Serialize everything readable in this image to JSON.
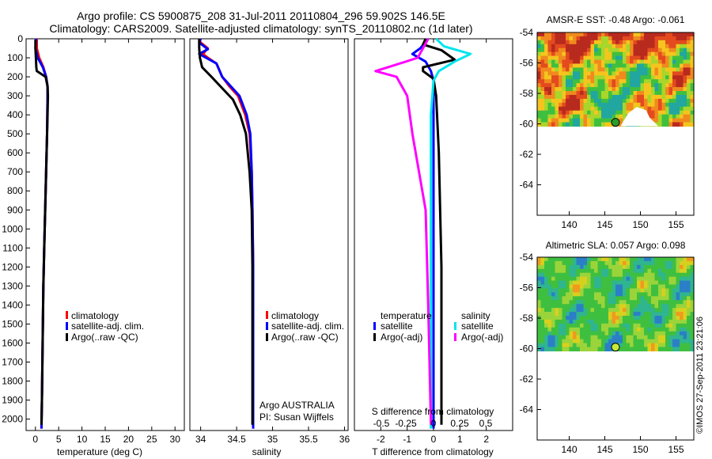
{
  "header": {
    "line1": "Argo profile: CS 5900875_208 31-Jul-2011 20110804_296 59.902S 146.5E",
    "line2": "Climatology: CARS2009. Satellite-adjusted climatology: synTS_20110802.nc (1d later)"
  },
  "colors": {
    "climatology": "#ff0000",
    "satellite": "#0000ff",
    "argo": "#000000",
    "sat_salinity": "#00e5ee",
    "argo_salinity": "#ff00ff"
  },
  "chart_data": [
    {
      "id": "temperature",
      "type": "line",
      "xlabel": "temperature (deg C)",
      "ylabel": "",
      "xlim": [
        -2,
        32
      ],
      "ylim": [
        2060,
        0
      ],
      "y_reversed": true,
      "xticks": [
        0,
        5,
        10,
        15,
        20,
        25,
        30
      ],
      "yticks": [
        0,
        100,
        200,
        300,
        400,
        500,
        600,
        700,
        800,
        900,
        1000,
        1100,
        1200,
        1300,
        1400,
        1500,
        1600,
        1700,
        1800,
        1900,
        2000
      ],
      "legend": [
        "climatology",
        "satellite-adj. clim.",
        "Argo(..raw -QC)"
      ],
      "series": [
        {
          "name": "climatology",
          "color": "#ff0000",
          "x": [
            0.3,
            0.3,
            0.8,
            1.7,
            2.3,
            2.6,
            2.6,
            2.5,
            2.3,
            2.1,
            1.9,
            1.7,
            1.6,
            1.5,
            1.4,
            1.3
          ],
          "y": [
            0,
            50,
            100,
            150,
            200,
            250,
            300,
            500,
            700,
            900,
            1100,
            1300,
            1500,
            1700,
            1900,
            2050
          ]
        },
        {
          "name": "satellite-adj. clim.",
          "color": "#0000ff",
          "x": [
            0.1,
            0.0,
            0.5,
            1.6,
            2.3,
            2.6,
            2.6,
            2.5,
            2.3,
            2.1,
            1.9,
            1.7,
            1.6,
            1.5,
            1.4,
            1.3
          ],
          "y": [
            0,
            50,
            100,
            150,
            200,
            250,
            300,
            500,
            700,
            900,
            1100,
            1300,
            1500,
            1700,
            1900,
            2050
          ]
        },
        {
          "name": "Argo(..raw -QC)",
          "color": "#000000",
          "x": [
            0.0,
            0.0,
            0.1,
            0.2,
            0.3,
            2.2,
            2.6,
            2.7,
            2.6,
            2.5,
            2.3,
            2.1,
            1.9,
            1.7,
            1.6,
            1.5,
            1.4,
            1.3
          ],
          "y": [
            5,
            50,
            100,
            150,
            170,
            200,
            250,
            300,
            400,
            500,
            700,
            900,
            1100,
            1300,
            1500,
            1700,
            1900,
            2030
          ]
        }
      ]
    },
    {
      "id": "salinity",
      "type": "line",
      "xlabel": "salinity",
      "ylabel": "",
      "xlim": [
        33.85,
        36.05
      ],
      "ylim": [
        2060,
        0
      ],
      "y_reversed": true,
      "xticks": [
        34,
        34.5,
        35,
        35.5,
        36
      ],
      "legend": [
        "climatology",
        "satellite-adj. clim.",
        "Argo(..raw -QC)"
      ],
      "annotation": [
        "Argo AUSTRALIA",
        "PI: Susan Wijffels"
      ],
      "series": [
        {
          "name": "climatology",
          "color": "#ff0000",
          "x": [
            33.98,
            34.0,
            34.1,
            34.03,
            34.1,
            34.22,
            34.3,
            34.4,
            34.52,
            34.62,
            34.68,
            34.71,
            34.72,
            34.73,
            34.73,
            34.73
          ],
          "y": [
            0,
            20,
            50,
            80,
            100,
            130,
            200,
            250,
            300,
            400,
            500,
            700,
            900,
            1200,
            1600,
            2050
          ]
        },
        {
          "name": "satellite-adj. clim.",
          "color": "#0000ff",
          "x": [
            34.0,
            33.98,
            34.1,
            33.98,
            34.1,
            34.22,
            34.3,
            34.42,
            34.54,
            34.64,
            34.69,
            34.71,
            34.72,
            34.73,
            34.73,
            34.73
          ],
          "y": [
            0,
            20,
            55,
            80,
            105,
            130,
            200,
            250,
            300,
            400,
            500,
            700,
            900,
            1200,
            1600,
            2050
          ]
        },
        {
          "name": "Argo(..raw -QC)",
          "color": "#000000",
          "x": [
            33.98,
            33.98,
            33.99,
            34.02,
            34.15,
            34.3,
            34.45,
            34.55,
            34.63,
            34.68,
            34.71,
            34.72,
            34.72,
            34.72
          ],
          "y": [
            0,
            50,
            100,
            150,
            200,
            260,
            320,
            400,
            500,
            700,
            900,
            1200,
            1600,
            2030
          ]
        }
      ]
    },
    {
      "id": "difference",
      "type": "line",
      "xlabel": "T difference from climatology",
      "top_label": "S difference from climatology",
      "xlim": [
        -3,
        3
      ],
      "ylim": [
        2060,
        0
      ],
      "y_reversed": true,
      "xticks": [
        -2,
        -1,
        0,
        1,
        2
      ],
      "top_ticks": [
        "-0.5",
        "-0.25",
        "0",
        "0.25",
        "0.5"
      ],
      "legend": {
        "temperature_header": "temperature",
        "salinity_header": "salinity",
        "items": [
          "satellite",
          "Argo(-adj)",
          "satellite",
          "Argo(-adj)"
        ]
      },
      "series": [
        {
          "name": "temperature satellite",
          "color": "#0000ff",
          "x": [
            -0.2,
            -0.5,
            -0.8,
            -0.3,
            -0.1,
            0.0,
            0.0,
            0.0,
            0.0
          ],
          "y": [
            0,
            50,
            80,
            120,
            170,
            220,
            400,
            1000,
            2050
          ]
        },
        {
          "name": "temperature Argo(-adj)",
          "color": "#000000",
          "x": [
            -0.3,
            -0.4,
            0.3,
            0.8,
            -0.4,
            -0.4,
            0.0,
            0.1,
            0.2,
            0.3,
            0.3
          ],
          "y": [
            0,
            30,
            60,
            110,
            150,
            170,
            210,
            300,
            600,
            1200,
            2030
          ]
        },
        {
          "name": "salinity satellite",
          "color": "#00e5ee",
          "x": [
            0.1,
            0.4,
            1.4,
            0.8,
            0.2,
            0.0,
            -0.1,
            -0.1,
            -0.1
          ],
          "y": [
            0,
            40,
            80,
            120,
            170,
            220,
            400,
            1000,
            2050
          ]
        },
        {
          "name": "salinity Argo(-adj)",
          "color": "#ff00ff",
          "x": [
            -0.2,
            -0.6,
            -1.5,
            -2.2,
            -1.4,
            -1.0,
            -0.8,
            -0.3,
            -0.2,
            -0.1
          ],
          "y": [
            0,
            100,
            140,
            170,
            200,
            300,
            500,
            900,
            1400,
            2030
          ]
        }
      ]
    },
    {
      "id": "sst_map",
      "type": "heatmap",
      "title": "AMSR-E SST: -0.48 Argo: -0.061",
      "xlim": [
        135.5,
        157.5
      ],
      "ylim": [
        -66,
        -54
      ],
      "xticks": [
        140,
        145,
        150,
        155
      ],
      "yticks": [
        -54,
        -56,
        -58,
        -60,
        -62,
        -64
      ],
      "marker": {
        "lon": 146.5,
        "lat": -59.902
      }
    },
    {
      "id": "sla_map",
      "type": "heatmap",
      "title": "Altimetric SLA: 0.057 Argo: 0.098",
      "xlim": [
        135.5,
        157.5
      ],
      "ylim": [
        -66,
        -54
      ],
      "xticks": [
        140,
        145,
        150,
        155
      ],
      "yticks": [
        -54,
        -56,
        -58,
        -60,
        -62,
        -64
      ],
      "marker": {
        "lon": 146.5,
        "lat": -59.902
      }
    }
  ],
  "credit": "©IMOS 27-Sep-2011 23:21:06"
}
